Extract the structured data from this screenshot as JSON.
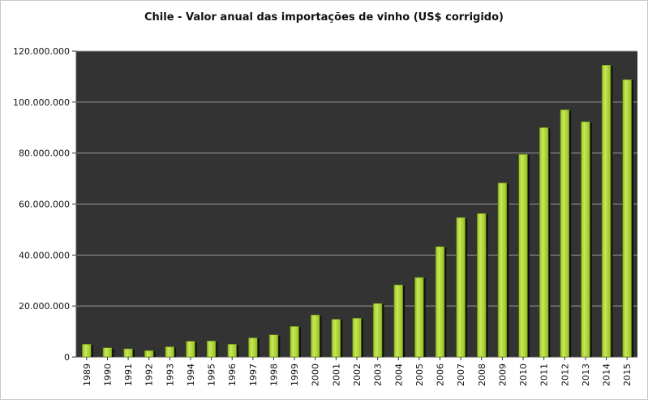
{
  "chart_data": {
    "type": "bar",
    "title": "Chile - Valor anual das importações de vinho (US$ corrigido)",
    "xlabel": "",
    "ylabel": "",
    "ylim": [
      0,
      120000000
    ],
    "yticks": [
      0,
      20000000,
      40000000,
      60000000,
      80000000,
      100000000,
      120000000
    ],
    "ytick_labels": [
      "0",
      "20.000.000",
      "40.000.000",
      "60.000.000",
      "80.000.000",
      "100.000.000",
      "120.000.000"
    ],
    "categories": [
      "1989",
      "1990",
      "1991",
      "1992",
      "1993",
      "1994",
      "1995",
      "1996",
      "1997",
      "1998",
      "1999",
      "2000",
      "2001",
      "2002",
      "2003",
      "2004",
      "2005",
      "2006",
      "2007",
      "2008",
      "2009",
      "2010",
      "2011",
      "2012",
      "2013",
      "2014",
      "2015"
    ],
    "values": [
      5000000,
      3600000,
      3200000,
      2500000,
      4000000,
      6200000,
      6300000,
      5000000,
      7500000,
      8700000,
      12000000,
      16500000,
      14800000,
      15200000,
      21000000,
      28300000,
      31200000,
      43300000,
      54700000,
      56300000,
      68300000,
      79500000,
      90000000,
      97000000,
      92300000,
      114500000,
      108800000
    ],
    "grid": true,
    "legend": "none",
    "colors": {
      "plot_background": "#333333",
      "bar_fill": "#94c11f",
      "bar_highlight": "#c8e85a",
      "bar_shadow": "#111111",
      "gridline": "#9a9a9a"
    }
  }
}
